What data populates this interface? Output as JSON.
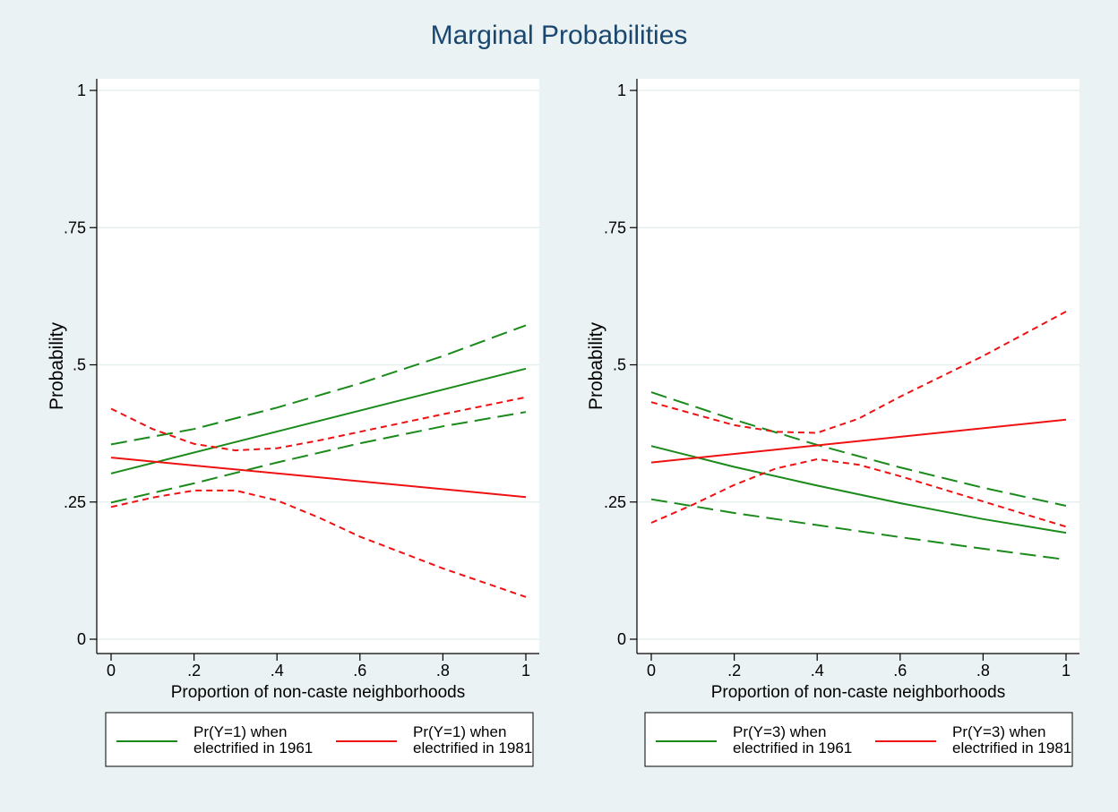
{
  "title": "Marginal Probabilities",
  "chart_data": [
    {
      "type": "line",
      "xlabel": "Proportion of non-caste neighborhoods",
      "ylabel": "Probability",
      "xlim": [
        0,
        1
      ],
      "ylim": [
        0,
        1
      ],
      "xticks": [
        {
          "v": 0,
          "label": "0"
        },
        {
          "v": 0.2,
          "label": ".2"
        },
        {
          "v": 0.4,
          "label": ".4"
        },
        {
          "v": 0.6,
          "label": ".6"
        },
        {
          "v": 0.8,
          "label": ".8"
        },
        {
          "v": 1,
          "label": "1"
        }
      ],
      "yticks": [
        {
          "v": 0,
          "label": "0"
        },
        {
          "v": 0.25,
          "label": ".25"
        },
        {
          "v": 0.5,
          "label": ".5"
        },
        {
          "v": 0.75,
          "label": ".75"
        },
        {
          "v": 1,
          "label": "1"
        }
      ],
      "grid": true,
      "series": [
        {
          "name": "Pr(Y=1) when electrified in 1961",
          "color": "#1a8a1a",
          "style": "solid",
          "x": [
            0,
            1
          ],
          "y": [
            0.302,
            0.493
          ]
        },
        {
          "color": "#1a8a1a",
          "style": "dashed",
          "x": [
            0,
            0.2,
            0.4,
            0.6,
            0.8,
            1
          ],
          "y": [
            0.355,
            0.383,
            0.422,
            0.466,
            0.516,
            0.572
          ]
        },
        {
          "color": "#1a8a1a",
          "style": "dashed",
          "x": [
            0,
            0.2,
            0.4,
            0.6,
            0.8,
            1
          ],
          "y": [
            0.249,
            0.284,
            0.322,
            0.357,
            0.388,
            0.414
          ]
        },
        {
          "name": "Pr(Y=1) when electrified in 1981",
          "color": "#ee1111",
          "style": "solid",
          "x": [
            0,
            1
          ],
          "y": [
            0.331,
            0.259
          ]
        },
        {
          "color": "#ee1111",
          "style": "dotted",
          "x": [
            0,
            0.1,
            0.2,
            0.3,
            0.4,
            0.5,
            0.6,
            0.8,
            1
          ],
          "y": [
            0.42,
            0.383,
            0.356,
            0.344,
            0.348,
            0.362,
            0.378,
            0.41,
            0.441
          ]
        },
        {
          "color": "#ee1111",
          "style": "dotted",
          "x": [
            0,
            0.1,
            0.2,
            0.3,
            0.4,
            0.5,
            0.6,
            0.8,
            1
          ],
          "y": [
            0.241,
            0.258,
            0.271,
            0.271,
            0.253,
            0.222,
            0.187,
            0.129,
            0.077
          ]
        }
      ],
      "legend": {
        "position": "bottom",
        "entries": [
          {
            "line1": "Pr(Y=1) when",
            "line2": "electrified in 1961",
            "color": "#1a8a1a"
          },
          {
            "line1": "Pr(Y=1) when",
            "line2": "electrified in 1981",
            "color": "#ee1111"
          }
        ]
      }
    },
    {
      "type": "line",
      "xlabel": "Proportion of non-caste neighborhoods",
      "ylabel": "Probability",
      "xlim": [
        0,
        1
      ],
      "ylim": [
        0,
        1
      ],
      "xticks": [
        {
          "v": 0,
          "label": "0"
        },
        {
          "v": 0.2,
          "label": ".2"
        },
        {
          "v": 0.4,
          "label": ".4"
        },
        {
          "v": 0.6,
          "label": ".6"
        },
        {
          "v": 0.8,
          "label": ".8"
        },
        {
          "v": 1,
          "label": "1"
        }
      ],
      "yticks": [
        {
          "v": 0,
          "label": "0"
        },
        {
          "v": 0.25,
          "label": ".25"
        },
        {
          "v": 0.5,
          "label": ".5"
        },
        {
          "v": 0.75,
          "label": ".75"
        },
        {
          "v": 1,
          "label": "1"
        }
      ],
      "grid": true,
      "series": [
        {
          "name": "Pr(Y=3) when electrified in 1961",
          "color": "#1a8a1a",
          "style": "solid",
          "x": [
            0,
            0.2,
            0.4,
            0.6,
            0.8,
            1
          ],
          "y": [
            0.352,
            0.314,
            0.28,
            0.248,
            0.219,
            0.194
          ]
        },
        {
          "color": "#1a8a1a",
          "style": "dashed",
          "x": [
            0,
            0.2,
            0.4,
            0.6,
            0.8,
            1
          ],
          "y": [
            0.45,
            0.4,
            0.354,
            0.313,
            0.276,
            0.243
          ]
        },
        {
          "color": "#1a8a1a",
          "style": "dashed",
          "x": [
            0,
            0.2,
            0.4,
            0.6,
            0.8,
            1
          ],
          "y": [
            0.255,
            0.23,
            0.208,
            0.186,
            0.165,
            0.145
          ]
        },
        {
          "name": "Pr(Y=3) when electrified in 1981",
          "color": "#ee1111",
          "style": "solid",
          "x": [
            0,
            1
          ],
          "y": [
            0.322,
            0.4
          ]
        },
        {
          "color": "#ee1111",
          "style": "dotted",
          "x": [
            0,
            0.1,
            0.2,
            0.3,
            0.4,
            0.5,
            0.6,
            0.8,
            1
          ],
          "y": [
            0.432,
            0.411,
            0.39,
            0.378,
            0.376,
            0.402,
            0.442,
            0.516,
            0.597
          ]
        },
        {
          "color": "#ee1111",
          "style": "dotted",
          "x": [
            0,
            0.1,
            0.2,
            0.3,
            0.4,
            0.5,
            0.6,
            0.8,
            1
          ],
          "y": [
            0.212,
            0.245,
            0.281,
            0.311,
            0.328,
            0.318,
            0.297,
            0.251,
            0.205
          ]
        }
      ],
      "legend": {
        "position": "bottom",
        "entries": [
          {
            "line1": "Pr(Y=3) when",
            "line2": "electrified in 1961",
            "color": "#1a8a1a"
          },
          {
            "line1": "Pr(Y=3) when",
            "line2": "electrified in 1981",
            "color": "#ee1111"
          }
        ]
      }
    }
  ]
}
